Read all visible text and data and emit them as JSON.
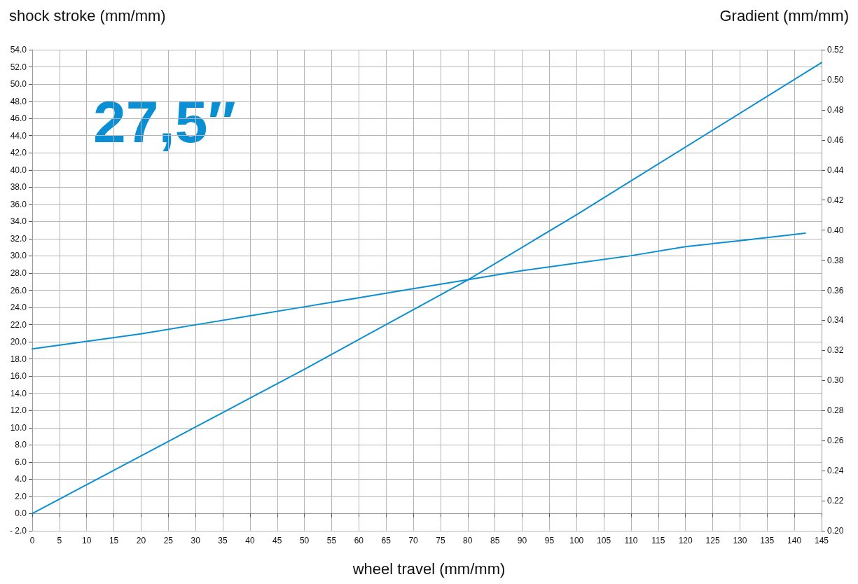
{
  "chart_data": {
    "type": "line",
    "xlabel": "wheel travel (mm/mm)",
    "ylabel": "shock stroke (mm/mm)",
    "y2label": "Gradient (mm/mm)",
    "annotations": [
      "27,5″"
    ],
    "xlim": [
      0,
      145
    ],
    "xticks": [
      0,
      5,
      10,
      15,
      20,
      25,
      30,
      35,
      40,
      45,
      50,
      55,
      60,
      65,
      70,
      75,
      80,
      85,
      90,
      95,
      100,
      105,
      110,
      115,
      120,
      125,
      130,
      135,
      140,
      145
    ],
    "ylim": [
      -2,
      54
    ],
    "yticks": [
      {
        "value": -2,
        "label": "- 2.0"
      },
      {
        "value": 0,
        "label": "0.0"
      },
      {
        "value": 2,
        "label": "2.0"
      },
      {
        "value": 4,
        "label": "4.0"
      },
      {
        "value": 6,
        "label": "6.0"
      },
      {
        "value": 8,
        "label": "8.0"
      },
      {
        "value": 10,
        "label": "10.0"
      },
      {
        "value": 12,
        "label": "12.0"
      },
      {
        "value": 14,
        "label": "14.0"
      },
      {
        "value": 16,
        "label": "16.0"
      },
      {
        "value": 18,
        "label": "18.0"
      },
      {
        "value": 20,
        "label": "20.0"
      },
      {
        "value": 22,
        "label": "22.0"
      },
      {
        "value": 24,
        "label": "24.0"
      },
      {
        "value": 26,
        "label": "26.0"
      },
      {
        "value": 28,
        "label": "28.0"
      },
      {
        "value": 30,
        "label": "30.0"
      },
      {
        "value": 32,
        "label": "32.0"
      },
      {
        "value": 34,
        "label": "34.0"
      },
      {
        "value": 36,
        "label": "36.0"
      },
      {
        "value": 38,
        "label": "38.0"
      },
      {
        "value": 40,
        "label": "40.0"
      },
      {
        "value": 42,
        "label": "42.0"
      },
      {
        "value": 44,
        "label": "44.0"
      },
      {
        "value": 46,
        "label": "46.0"
      },
      {
        "value": 48,
        "label": "48.0"
      },
      {
        "value": 50,
        "label": "50.0"
      },
      {
        "value": 52,
        "label": "52.0"
      },
      {
        "value": 54,
        "label": "54.0"
      }
    ],
    "y2lim": [
      0.2,
      0.52
    ],
    "y2ticks": [
      {
        "value": 0.2,
        "label": "0.20"
      },
      0.22,
      0.24,
      0.26,
      0.28,
      {
        "value": 0.3,
        "label": "0.30"
      },
      0.32,
      0.34,
      0.36,
      0.38,
      {
        "value": 0.4,
        "label": "0.40"
      },
      0.42,
      0.44,
      0.46,
      0.48,
      {
        "value": 0.5,
        "label": "0.50"
      },
      0.52
    ],
    "grid": true,
    "marker": "none",
    "line_style": "solid",
    "series": [
      {
        "color": "#0a8fd5",
        "x": [
          0,
          50,
          80,
          100,
          145
        ],
        "values": [
          0,
          16.8,
          27.2,
          34.8,
          52.5
        ]
      },
      {
        "color": "#0a8fd5",
        "axis": "y2",
        "x": [
          0,
          10,
          20,
          30,
          40,
          50,
          60,
          70,
          80,
          90,
          100,
          110,
          120,
          130,
          142
        ],
        "values": [
          0.321,
          0.326,
          0.331,
          0.337,
          0.343,
          0.349,
          0.355,
          0.361,
          0.367,
          0.373,
          0.378,
          0.383,
          0.389,
          0.393,
          0.398
        ]
      }
    ]
  }
}
